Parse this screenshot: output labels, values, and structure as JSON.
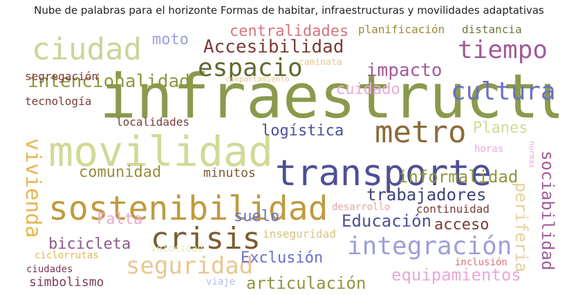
{
  "title": "Nube de palabras para el horizonte Formas de habitar, infraestructuras y movilidades adaptativas",
  "words": [
    {
      "text": "infraestructura",
      "color": "#8a9a4c"
    },
    {
      "text": "movilidad",
      "color": "#d2d996"
    },
    {
      "text": "transporte",
      "color": "#4e4f96"
    },
    {
      "text": "sostenibilidad",
      "color": "#bf9b3e"
    },
    {
      "text": "crisis",
      "color": "#7a5c2e"
    },
    {
      "text": "metro",
      "color": "#8c6a3a"
    },
    {
      "text": "ciudad",
      "color": "#cdd39a"
    },
    {
      "text": "tiempo",
      "color": "#a35a9a"
    },
    {
      "text": "espacio",
      "color": "#5e6b30"
    },
    {
      "text": "cultura",
      "color": "#6b6fc6"
    },
    {
      "text": "integración",
      "color": "#9b9fda"
    },
    {
      "text": "seguridad",
      "color": "#e7c892"
    },
    {
      "text": "vivienda",
      "color": "#e7b64e"
    },
    {
      "text": "Accesibilidad",
      "color": "#7b3b37"
    },
    {
      "text": "intencionalidad",
      "color": "#8f9640"
    },
    {
      "text": "impacto",
      "color": "#a35a9a"
    },
    {
      "text": "sociabilidad",
      "color": "#a35a9a"
    },
    {
      "text": "periferia",
      "color": "#e7cf9a"
    },
    {
      "text": "trabajadores",
      "color": "#3f4478"
    },
    {
      "text": "informalidad",
      "color": "#8f9640"
    },
    {
      "text": "Educación",
      "color": "#4e4f96"
    },
    {
      "text": "equipamientos",
      "color": "#e9a8d8"
    },
    {
      "text": "articulación",
      "color": "#8f9640"
    },
    {
      "text": "centralidades",
      "color": "#d8747b"
    },
    {
      "text": "cuidado",
      "color": "#e9a8d8"
    },
    {
      "text": "logística",
      "color": "#4e4f96"
    },
    {
      "text": "Planes",
      "color": "#d2d996"
    },
    {
      "text": "comunidad",
      "color": "#9a8c3c"
    },
    {
      "text": "bicicleta",
      "color": "#8a5a8a"
    },
    {
      "text": "Exclusión",
      "color": "#6b6fc6"
    },
    {
      "text": "suelo",
      "color": "#6b6fc6"
    },
    {
      "text": "Falta",
      "color": "#e9a8d8"
    },
    {
      "text": "moto",
      "color": "#9b9fda"
    },
    {
      "text": "acceso",
      "color": "#7b3b37"
    },
    {
      "text": "minutos",
      "color": "#7a5c2e"
    },
    {
      "text": "simbolismo",
      "color": "#7b3b5a"
    },
    {
      "text": "planificación",
      "color": "#9a8c3c"
    },
    {
      "text": "distancia",
      "color": "#6b7a3a"
    },
    {
      "text": "localidades",
      "color": "#7b3b37"
    },
    {
      "text": "continuidad",
      "color": "#7b3b37"
    },
    {
      "text": "segregación",
      "color": "#7b3b37"
    },
    {
      "text": "tecnología",
      "color": "#7b3b37"
    },
    {
      "text": "inseguridad",
      "color": "#d7c27a"
    },
    {
      "text": "desarrollo",
      "color": "#e6a3a3"
    },
    {
      "text": "ciclorrutas",
      "color": "#e7b64e"
    },
    {
      "text": "velocidad",
      "color": "#e5ebb8"
    },
    {
      "text": "ciudades",
      "color": "#7b3b5a"
    },
    {
      "text": "inclusión",
      "color": "#d8747b"
    },
    {
      "text": "horas",
      "color": "#e9a8d8"
    },
    {
      "text": "normas",
      "color": "#e9a8d8"
    },
    {
      "text": "caminata",
      "color": "#e7c892"
    },
    {
      "text": "comportamiento",
      "color": "#e7c892"
    },
    {
      "text": "viaje",
      "color": "#b8bde8"
    }
  ]
}
